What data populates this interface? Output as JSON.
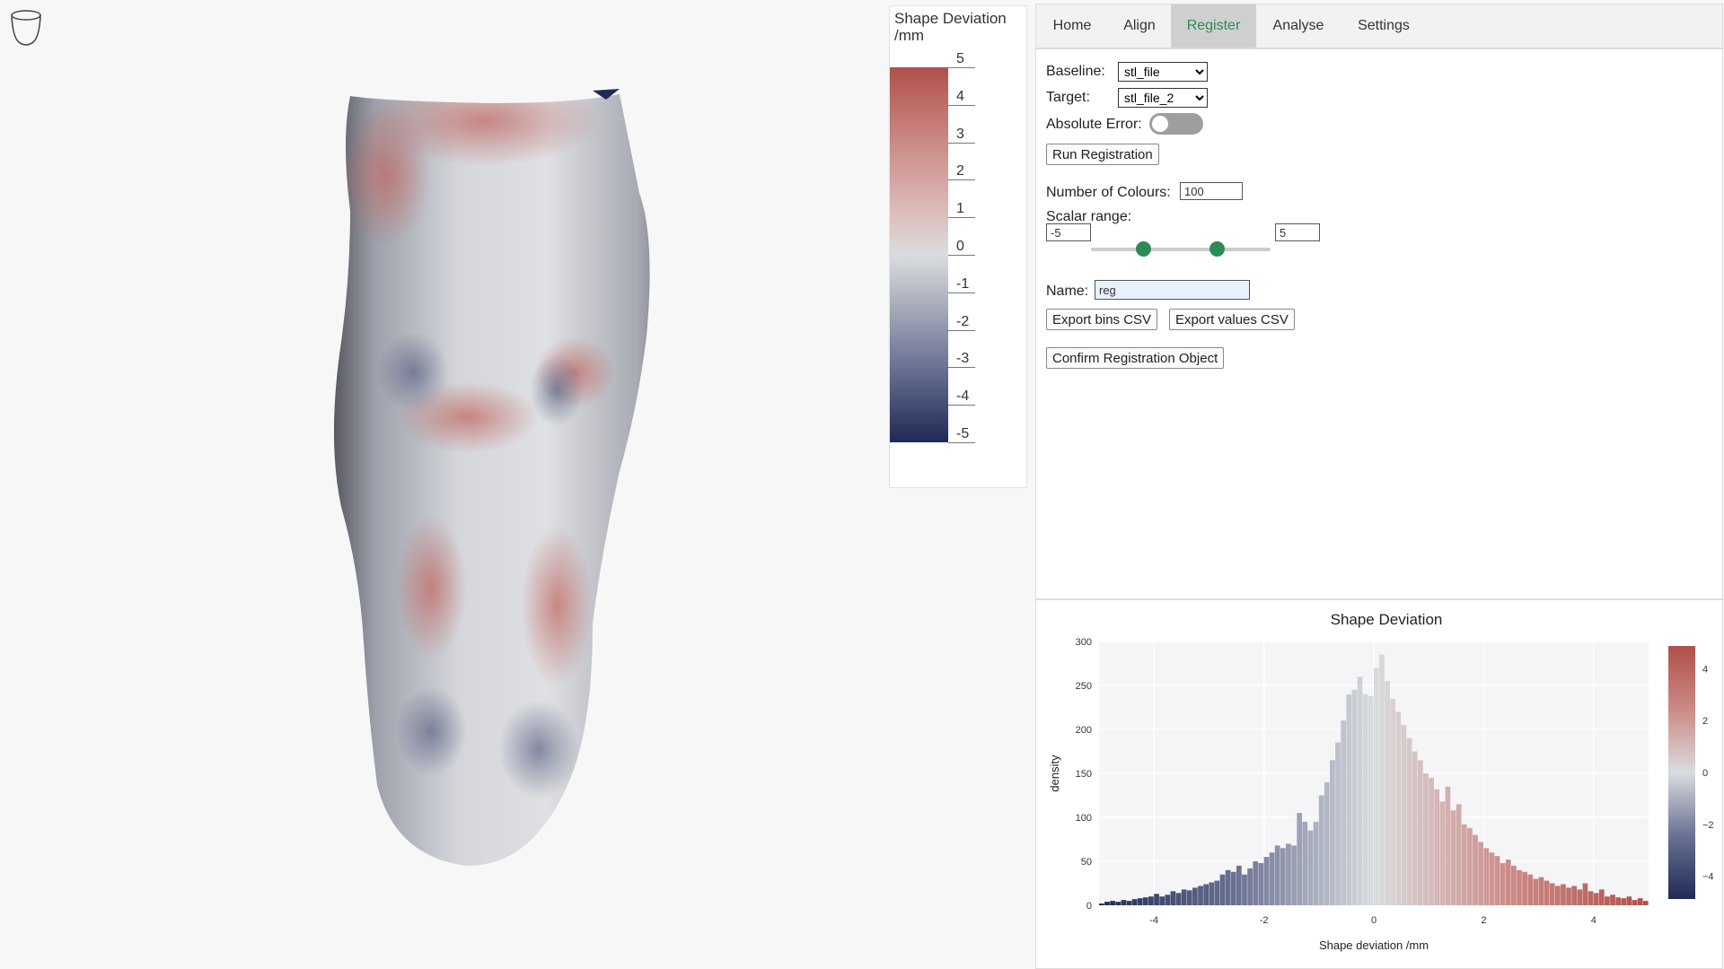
{
  "scalar_bar": {
    "title": "Shape Deviation /mm",
    "labels": [
      "5",
      "4",
      "3",
      "2",
      "1",
      "0",
      "-1",
      "-2",
      "-3",
      "-4",
      "-5"
    ]
  },
  "tabs": [
    {
      "label": "Home"
    },
    {
      "label": "Align"
    },
    {
      "label": "Register",
      "active": true
    },
    {
      "label": "Analyse"
    },
    {
      "label": "Settings"
    }
  ],
  "form": {
    "baseline_label": "Baseline:",
    "baseline_value": "stl_file",
    "target_label": "Target:",
    "target_value": "stl_file_2",
    "absolute_error_label": "Absolute Error:",
    "absolute_error_on": false,
    "run_button": "Run Registration",
    "num_colours_label": "Number of Colours:",
    "num_colours_value": "100",
    "scalar_range_label": "Scalar range:",
    "range_min": "-5",
    "range_max": "5",
    "name_label": "Name:",
    "name_value": "reg",
    "export_bins_button": "Export bins CSV",
    "export_values_button": "Export values CSV",
    "confirm_button": "Confirm Registration Object"
  },
  "colors": {
    "accent": "#2e8b57",
    "positive": "#b0504a",
    "neutral": "#d9dcdf",
    "negative": "#1f2a55"
  },
  "icons": {
    "viewport_corner": "cup-outline-icon"
  },
  "chart_data": {
    "type": "bar",
    "title": "Shape Deviation",
    "xlabel": "Shape deviation /mm",
    "ylabel": "density",
    "xlim": [
      -5,
      5
    ],
    "ylim": [
      0,
      300
    ],
    "x_ticks": [
      "-4",
      "-2",
      "0",
      "2",
      "4"
    ],
    "y_ticks": [
      "0",
      "50",
      "100",
      "150",
      "200",
      "250",
      "300"
    ],
    "colorbar_ticks": [
      "4",
      "2",
      "0",
      "−2",
      "−4"
    ],
    "grid": true,
    "bin_width": 0.1,
    "x": [
      -4.95,
      -4.85,
      -4.75,
      -4.65,
      -4.55,
      -4.45,
      -4.35,
      -4.25,
      -4.15,
      -4.05,
      -3.95,
      -3.85,
      -3.75,
      -3.65,
      -3.55,
      -3.45,
      -3.35,
      -3.25,
      -3.15,
      -3.05,
      -2.95,
      -2.85,
      -2.75,
      -2.65,
      -2.55,
      -2.45,
      -2.35,
      -2.25,
      -2.15,
      -2.05,
      -1.95,
      -1.85,
      -1.75,
      -1.65,
      -1.55,
      -1.45,
      -1.35,
      -1.25,
      -1.15,
      -1.05,
      -0.95,
      -0.85,
      -0.75,
      -0.65,
      -0.55,
      -0.45,
      -0.35,
      -0.25,
      -0.15,
      -0.05,
      0.05,
      0.15,
      0.25,
      0.35,
      0.45,
      0.55,
      0.65,
      0.75,
      0.85,
      0.95,
      1.05,
      1.15,
      1.25,
      1.35,
      1.45,
      1.55,
      1.65,
      1.75,
      1.85,
      1.95,
      2.05,
      2.15,
      2.25,
      2.35,
      2.45,
      2.55,
      2.65,
      2.75,
      2.85,
      2.95,
      3.05,
      3.15,
      3.25,
      3.35,
      3.45,
      3.55,
      3.65,
      3.75,
      3.85,
      3.95,
      4.05,
      4.15,
      4.25,
      4.35,
      4.45,
      4.55,
      4.65,
      4.75,
      4.85,
      4.95
    ],
    "values": [
      2,
      4,
      5,
      4,
      6,
      5,
      7,
      8,
      9,
      10,
      13,
      10,
      12,
      16,
      14,
      18,
      17,
      20,
      22,
      24,
      26,
      28,
      35,
      40,
      38,
      45,
      35,
      42,
      50,
      48,
      55,
      60,
      68,
      65,
      70,
      68,
      105,
      95,
      85,
      95,
      125,
      140,
      165,
      185,
      210,
      240,
      245,
      260,
      240,
      238,
      270,
      285,
      255,
      235,
      220,
      205,
      190,
      175,
      165,
      150,
      145,
      132,
      118,
      135,
      108,
      115,
      92,
      88,
      80,
      72,
      65,
      60,
      56,
      48,
      52,
      45,
      40,
      38,
      35,
      30,
      32,
      28,
      25,
      22,
      24,
      20,
      22,
      18,
      25,
      16,
      14,
      18,
      10,
      12,
      9,
      8,
      10,
      6,
      8,
      5
    ]
  }
}
